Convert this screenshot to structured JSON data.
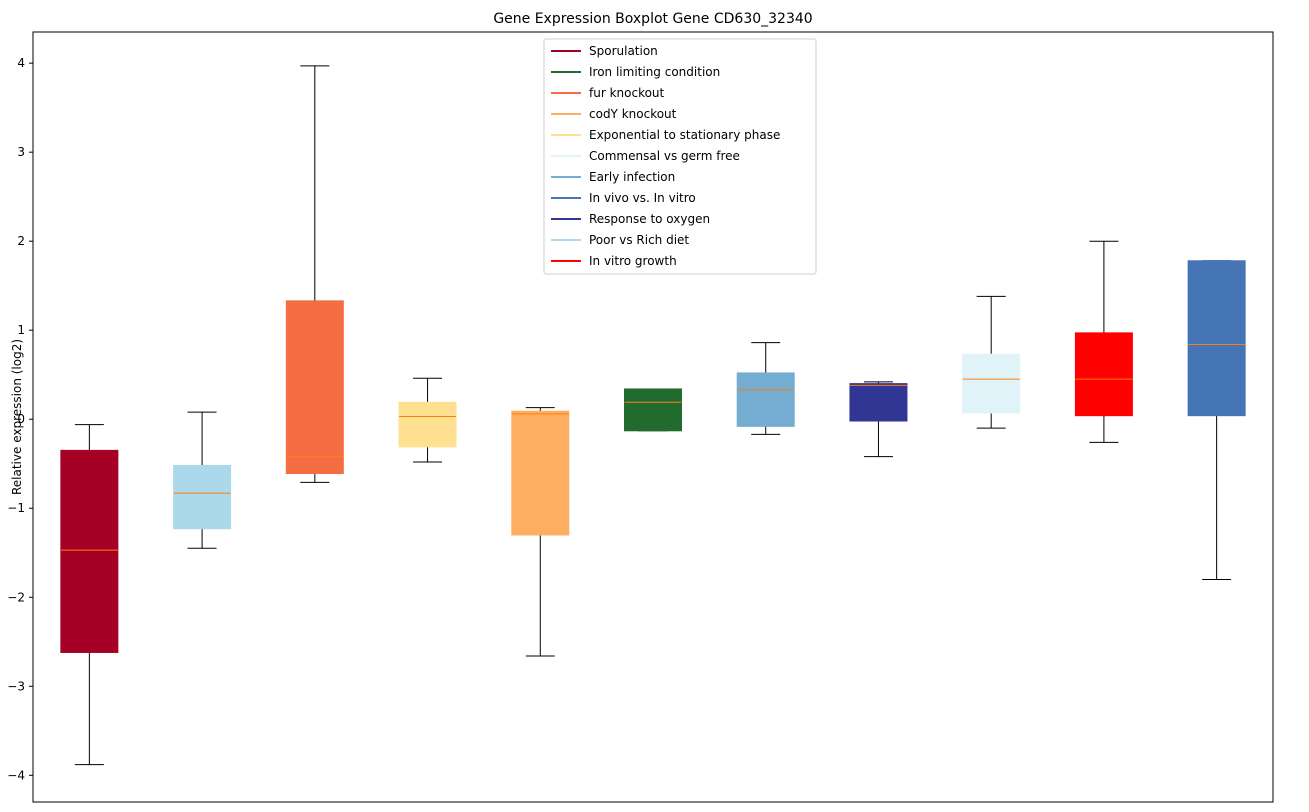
{
  "chart_data": {
    "type": "boxplot",
    "title": "Gene Expression Boxplot Gene CD630_32340",
    "xlabel": "",
    "ylabel": "Relative expression (log2)",
    "ylim": [
      -4.3,
      4.35
    ],
    "yticks": [
      -4,
      -3,
      -2,
      -1,
      0,
      1,
      2,
      3,
      4
    ],
    "ytick_labels": [
      "−4",
      "−3",
      "−2",
      "−1",
      "0",
      "1",
      "2",
      "3",
      "4"
    ],
    "grid": false,
    "legend_position": "top-center",
    "median_color": "#ff7f0e",
    "series": [
      {
        "name": "Sporulation",
        "color": "#a50026",
        "whisker_low": -3.88,
        "q1": -2.62,
        "median": -1.47,
        "q3": -0.35,
        "whisker_high": -0.06
      },
      {
        "name": "Poor vs Rich diet",
        "color": "#abd9e9",
        "whisker_low": -1.45,
        "q1": -1.23,
        "median": -0.83,
        "q3": -0.52,
        "whisker_high": 0.08
      },
      {
        "name": "fur knockout",
        "color": "#f46d43",
        "whisker_low": -0.71,
        "q1": -0.61,
        "median": -0.42,
        "q3": 1.33,
        "whisker_high": 3.97
      },
      {
        "name": "Exponential to stationary phase",
        "color": "#fee090",
        "whisker_low": -0.48,
        "q1": -0.31,
        "median": 0.03,
        "q3": 0.19,
        "whisker_high": 0.46
      },
      {
        "name": "codY knockout",
        "color": "#fdae61",
        "whisker_low": -2.66,
        "q1": -1.3,
        "median": 0.06,
        "q3": 0.09,
        "whisker_high": 0.13
      },
      {
        "name": "Iron limiting condition",
        "color": "#226b2e",
        "whisker_low": -0.13,
        "q1": -0.13,
        "median": 0.19,
        "q3": 0.34,
        "whisker_high": 0.34
      },
      {
        "name": "Early infection",
        "color": "#74add1",
        "whisker_low": -0.17,
        "q1": -0.08,
        "median": 0.33,
        "q3": 0.52,
        "whisker_high": 0.86
      },
      {
        "name": "Response to oxygen",
        "color": "#313695",
        "whisker_low": -0.42,
        "q1": -0.02,
        "median": 0.38,
        "q3": 0.4,
        "whisker_high": 0.42
      },
      {
        "name": "Commensal vs germ free",
        "color": "#e0f3f8",
        "whisker_low": -0.1,
        "q1": 0.07,
        "median": 0.45,
        "q3": 0.73,
        "whisker_high": 1.38
      },
      {
        "name": "In vitro growth",
        "color": "#ff0000",
        "whisker_low": -0.26,
        "q1": 0.04,
        "median": 0.45,
        "q3": 0.97,
        "whisker_high": 2.0
      },
      {
        "name": "In vivo vs. In vitro",
        "color": "#4575b4",
        "whisker_low": -1.8,
        "q1": 0.04,
        "median": 0.84,
        "q3": 1.78,
        "whisker_high": 1.78
      }
    ],
    "legend": [
      {
        "label": "Sporulation",
        "color": "#a50026"
      },
      {
        "label": "Iron limiting condition",
        "color": "#226b2e"
      },
      {
        "label": "fur knockout",
        "color": "#f46d43"
      },
      {
        "label": "codY knockout",
        "color": "#fdae61"
      },
      {
        "label": "Exponential to stationary phase",
        "color": "#fee090"
      },
      {
        "label": "Commensal vs germ free",
        "color": "#e0f3f8"
      },
      {
        "label": "Early infection",
        "color": "#74add1"
      },
      {
        "label": "In vivo vs. In vitro",
        "color": "#4575b4"
      },
      {
        "label": "Response to oxygen",
        "color": "#313695"
      },
      {
        "label": "Poor vs Rich diet",
        "color": "#abd9e9"
      },
      {
        "label": "In vitro growth",
        "color": "#ff0000"
      }
    ]
  }
}
